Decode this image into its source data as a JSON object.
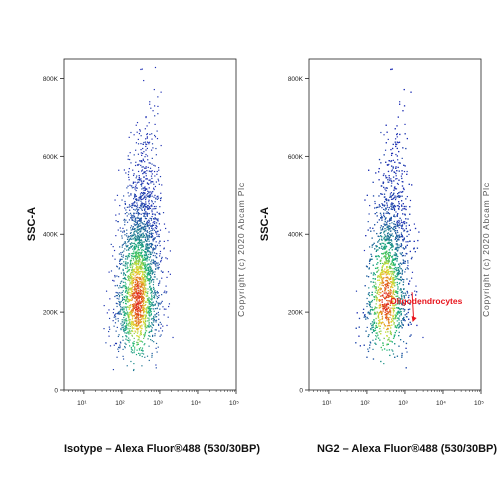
{
  "copyright": "Copyright (c) 2020 Abcam Plc",
  "colors": {
    "density_low": "#1f2fb4",
    "density_mid": "#19b873",
    "density_high": "#e0261a",
    "annotation": "#e8141c",
    "axis": "#222222"
  },
  "chart_data": [
    {
      "type": "scatter",
      "subtype": "flow-cytometry-density-dotplot",
      "xlabel": "Isotype – Alexa Fluor®488 (530/30BP)",
      "ylabel": "SSC-A",
      "x_scale": "log",
      "xlim": [
        3,
        100000
      ],
      "ylim": [
        0,
        850000
      ],
      "x_ticks": [
        10,
        100,
        1000,
        10000,
        100000
      ],
      "y_ticks": [
        {
          "value": 0,
          "label": "0"
        },
        {
          "value": 200000,
          "label": "200K"
        },
        {
          "value": 400000,
          "label": "400K"
        },
        {
          "value": 600000,
          "label": "600K"
        },
        {
          "value": 800000,
          "label": "800K"
        }
      ],
      "population": {
        "center_x": 250,
        "center_y": 230000,
        "x_range": [
          30,
          3000
        ],
        "y_range": [
          50000,
          830000
        ],
        "densest_region": {
          "x": [
            100,
            600
          ],
          "y": [
            130000,
            330000
          ]
        }
      },
      "annotations": []
    },
    {
      "type": "scatter",
      "subtype": "flow-cytometry-density-dotplot",
      "xlabel": "NG2 – Alexa Fluor®488 (530/30BP)",
      "ylabel": "SSC-A",
      "x_scale": "log",
      "xlim": [
        3,
        100000
      ],
      "ylim": [
        0,
        850000
      ],
      "x_ticks": [
        10,
        100,
        1000,
        10000,
        100000
      ],
      "y_ticks": [
        {
          "value": 0,
          "label": "0"
        },
        {
          "value": 200000,
          "label": "200K"
        },
        {
          "value": 400000,
          "label": "400K"
        },
        {
          "value": 600000,
          "label": "600K"
        },
        {
          "value": 800000,
          "label": "800K"
        }
      ],
      "population": {
        "center_x": 300,
        "center_y": 230000,
        "x_range": [
          30,
          8000
        ],
        "y_range": [
          50000,
          830000
        ],
        "densest_region": {
          "x": [
            120,
            700
          ],
          "y": [
            130000,
            330000
          ]
        }
      },
      "annotations": [
        {
          "text": "Oligodendrocytes",
          "x": 2500,
          "y": 210000,
          "arrow_to": {
            "x": 1500,
            "y": 190000
          }
        }
      ]
    }
  ]
}
